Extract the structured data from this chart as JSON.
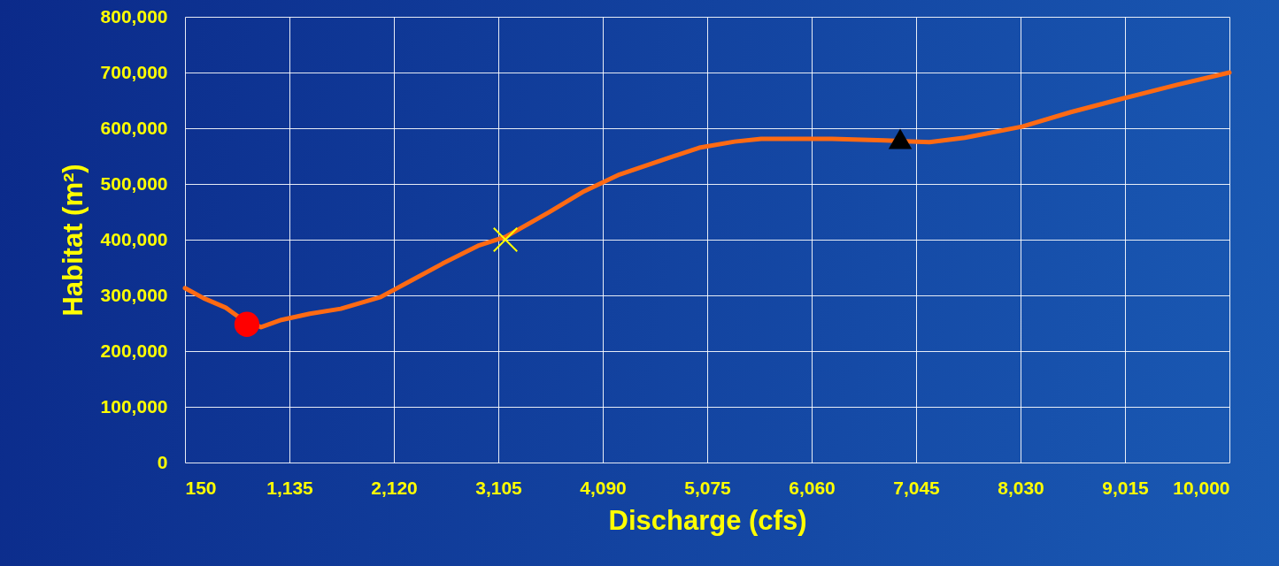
{
  "chart_data": {
    "type": "line",
    "xlabel": "Discharge (cfs)",
    "ylabel": "Habitat (m²)",
    "xlim": [
      150,
      10000
    ],
    "xticks": [
      150,
      {
        "value": 1135,
        "label": "1,135"
      },
      {
        "value": 2120,
        "label": "2,120"
      },
      {
        "value": 3105,
        "label": "3,105"
      },
      {
        "value": 4090,
        "label": "4,090"
      },
      {
        "value": 5075,
        "label": "5,075"
      },
      {
        "value": 6060,
        "label": "6,060"
      },
      {
        "value": 7045,
        "label": "7,045"
      },
      {
        "value": 8030,
        "label": "8,030"
      },
      {
        "value": 9015,
        "label": "9,015"
      },
      {
        "value": 10000,
        "label": "10,000"
      }
    ],
    "ylim": [
      0,
      800000
    ],
    "yticks": [
      0,
      {
        "value": 100000,
        "label": "100,000"
      },
      {
        "value": 200000,
        "label": "200,000"
      },
      {
        "value": 300000,
        "label": "300,000"
      },
      {
        "value": 400000,
        "label": "400,000"
      },
      {
        "value": 500000,
        "label": "500,000"
      },
      {
        "value": 600000,
        "label": "600,000"
      },
      {
        "value": 700000,
        "label": "700,000"
      },
      {
        "value": 800000,
        "label": "800,000"
      }
    ],
    "grid": true,
    "series": [
      {
        "color": "#ff6a13",
        "x": [
          150,
          325,
          534,
          642,
          868,
          1060,
          1327,
          1619,
          1995,
          2287,
          2579,
          2913,
          3172,
          3581,
          3915,
          4248,
          4666,
          5000,
          5334,
          5584,
          6252,
          6752,
          7170,
          7504,
          8046,
          8505,
          9006,
          9506,
          10000
        ],
        "values": [
          313000,
          295000,
          278000,
          263000,
          243000,
          256000,
          267000,
          276000,
          297000,
          327000,
          357000,
          389000,
          405000,
          449000,
          487000,
          517000,
          544000,
          565000,
          576000,
          581000,
          581000,
          578000,
          575000,
          583000,
          603000,
          629000,
          654000,
          678000,
          700000
        ]
      },
      {
        "type": "scatter",
        "marker": "circle",
        "color": "#ff0000",
        "x": [
          734
        ],
        "values": [
          248000
        ]
      },
      {
        "type": "scatter",
        "marker": "cross",
        "color": "#ffff00",
        "x": [
          3172
        ],
        "values": [
          400000
        ]
      },
      {
        "type": "scatter",
        "marker": "triangle",
        "color": "#000000",
        "x": [
          6895
        ],
        "values": [
          581000
        ]
      }
    ]
  }
}
